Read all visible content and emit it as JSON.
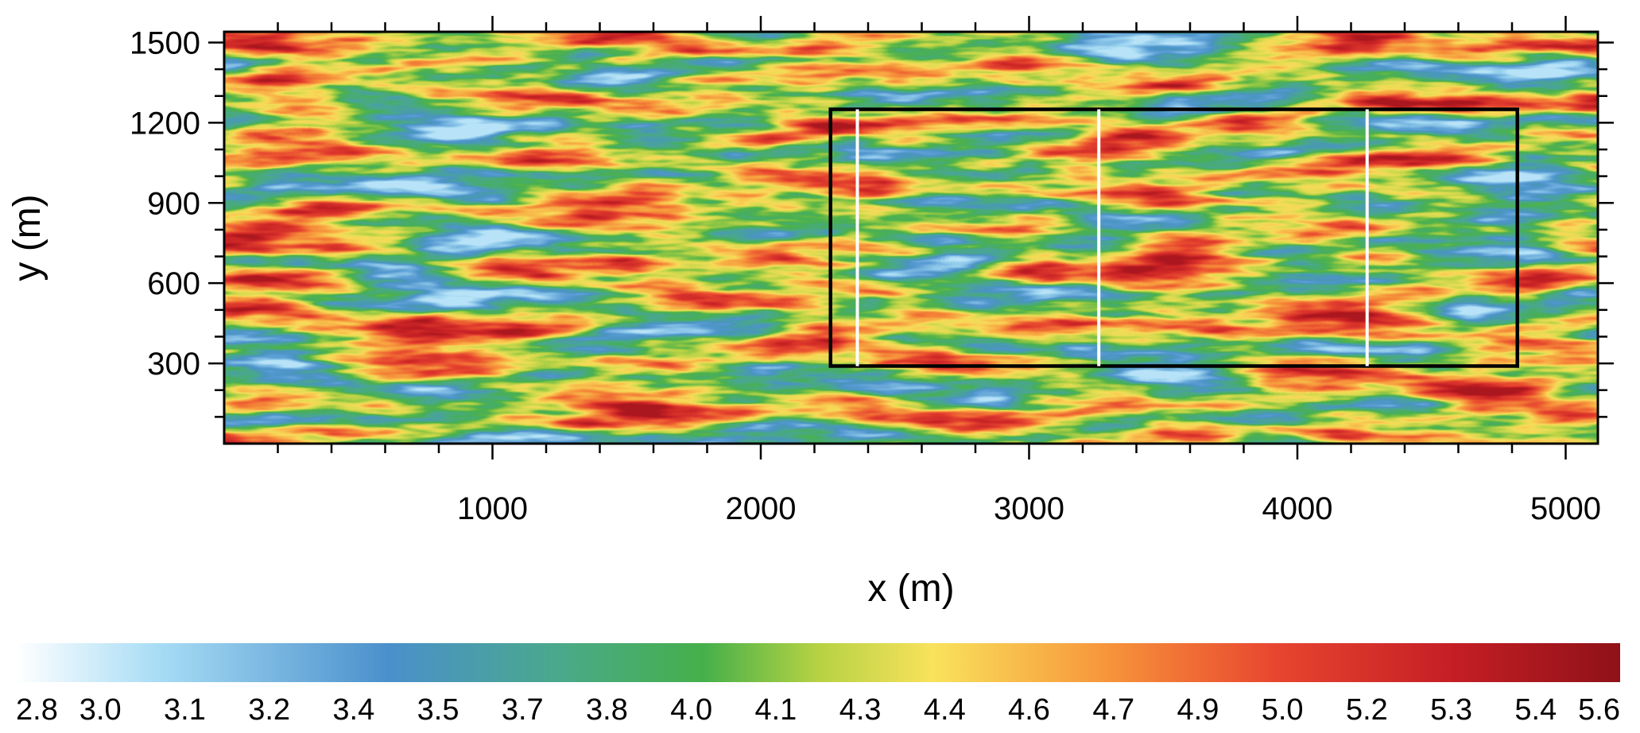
{
  "chart_data": {
    "type": "heatmap",
    "title": "",
    "xlabel": "x (m)",
    "ylabel": "y (m)",
    "xlim": [
      0,
      5120
    ],
    "ylim": [
      0,
      1540
    ],
    "x_ticks": [
      1000,
      2000,
      3000,
      4000,
      5000
    ],
    "x_tick_labels": [
      "1000",
      "2000",
      "3000",
      "4000",
      "5000"
    ],
    "y_ticks": [
      300,
      600,
      900,
      1200,
      1500
    ],
    "y_tick_labels": [
      "300",
      "600",
      "900",
      "1200",
      "1500"
    ],
    "grid": false,
    "field_description": "turbulent streaks elongated along x, values roughly 3.0 to 5.4",
    "value_range": [
      2.8,
      5.6
    ],
    "colorbar": {
      "orientation": "horizontal",
      "placement": "bottom",
      "labels": [
        "2.8",
        "3.0",
        "3.1",
        "3.2",
        "3.4",
        "3.5",
        "3.7",
        "3.8",
        "4.0",
        "4.1",
        "4.3",
        "4.4",
        "4.6",
        "4.7",
        "4.9",
        "5.0",
        "5.2",
        "5.3",
        "5.4",
        "5.6"
      ],
      "color_stops": [
        {
          "value": 2.8,
          "color": "#ffffff"
        },
        {
          "value": 3.05,
          "color": "#a7dcf5"
        },
        {
          "value": 3.45,
          "color": "#4a90cc"
        },
        {
          "value": 3.75,
          "color": "#4aa98a"
        },
        {
          "value": 4.0,
          "color": "#45b04a"
        },
        {
          "value": 4.2,
          "color": "#b6d243"
        },
        {
          "value": 4.4,
          "color": "#f9e25c"
        },
        {
          "value": 4.7,
          "color": "#f7963b"
        },
        {
          "value": 5.0,
          "color": "#e8452f"
        },
        {
          "value": 5.3,
          "color": "#c61f25"
        },
        {
          "value": 5.6,
          "color": "#8f1118"
        }
      ]
    },
    "box": {
      "x0": 2260,
      "x1": 4820,
      "y0": 290,
      "y1": 1250,
      "color": "#000000"
    },
    "white_lines_x": [
      2360,
      3260,
      4260
    ],
    "white_line_color": "#ffffff"
  }
}
